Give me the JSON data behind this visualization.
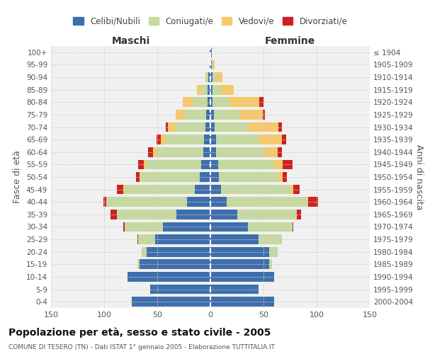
{
  "age_groups": [
    "100+",
    "95-99",
    "90-94",
    "85-89",
    "80-84",
    "75-79",
    "70-74",
    "65-69",
    "60-64",
    "55-59",
    "50-54",
    "45-49",
    "40-44",
    "35-39",
    "30-34",
    "25-29",
    "20-24",
    "15-19",
    "10-14",
    "5-9",
    "0-4"
  ],
  "birth_years": [
    "≤ 1904",
    "1905-1909",
    "1910-1914",
    "1915-1919",
    "1920-1924",
    "1925-1929",
    "1930-1934",
    "1935-1939",
    "1940-1944",
    "1945-1949",
    "1950-1954",
    "1955-1959",
    "1960-1964",
    "1965-1969",
    "1970-1974",
    "1975-1979",
    "1980-1984",
    "1985-1989",
    "1990-1994",
    "1995-1999",
    "2000-2004"
  ],
  "male": {
    "celibi": [
      1,
      1,
      2,
      3,
      3,
      4,
      5,
      6,
      7,
      9,
      10,
      15,
      22,
      32,
      45,
      52,
      60,
      67,
      78,
      57,
      74
    ],
    "coniugati": [
      0,
      0,
      2,
      6,
      14,
      20,
      28,
      36,
      44,
      52,
      56,
      66,
      76,
      56,
      36,
      16,
      5,
      2,
      0,
      0,
      0
    ],
    "vedovi": [
      0,
      0,
      1,
      4,
      9,
      9,
      7,
      5,
      3,
      2,
      1,
      1,
      0,
      0,
      0,
      0,
      0,
      0,
      0,
      0,
      0
    ],
    "divorziati": [
      0,
      0,
      0,
      0,
      0,
      0,
      2,
      4,
      5,
      5,
      3,
      6,
      3,
      6,
      1,
      1,
      0,
      0,
      0,
      0,
      0
    ]
  },
  "female": {
    "nubili": [
      1,
      1,
      2,
      2,
      2,
      3,
      4,
      5,
      5,
      7,
      8,
      10,
      15,
      25,
      35,
      45,
      55,
      55,
      60,
      45,
      60
    ],
    "coniugate": [
      0,
      1,
      3,
      8,
      16,
      24,
      32,
      40,
      46,
      53,
      56,
      66,
      76,
      56,
      42,
      22,
      8,
      3,
      0,
      0,
      0
    ],
    "vedove": [
      0,
      2,
      6,
      12,
      28,
      22,
      28,
      22,
      12,
      8,
      4,
      2,
      1,
      0,
      0,
      0,
      0,
      0,
      0,
      0,
      0
    ],
    "divorziate": [
      0,
      0,
      0,
      0,
      4,
      2,
      3,
      4,
      4,
      9,
      4,
      6,
      9,
      4,
      1,
      0,
      0,
      0,
      0,
      0,
      0
    ]
  },
  "colors": {
    "celibi": "#3e6fac",
    "coniugati": "#c5d9a0",
    "vedovi": "#f5c96a",
    "divorziati": "#cc2222"
  },
  "xlim": 150,
  "title": "Popolazione per età, sesso e stato civile - 2005",
  "subtitle": "COMUNE DI TESERO (TN) - Dati ISTAT 1° gennaio 2005 - Elaborazione TUTTITALIA.IT",
  "ylabel_left": "Fasce di età",
  "ylabel_right": "Anni di nascita",
  "xlabel_left": "Maschi",
  "xlabel_right": "Femmine",
  "legend_labels": [
    "Celibi/Nubili",
    "Coniugati/e",
    "Vedovi/e",
    "Divorziati/e"
  ],
  "bg_color": "#f0f0f0",
  "grid_color": "#cccccc"
}
